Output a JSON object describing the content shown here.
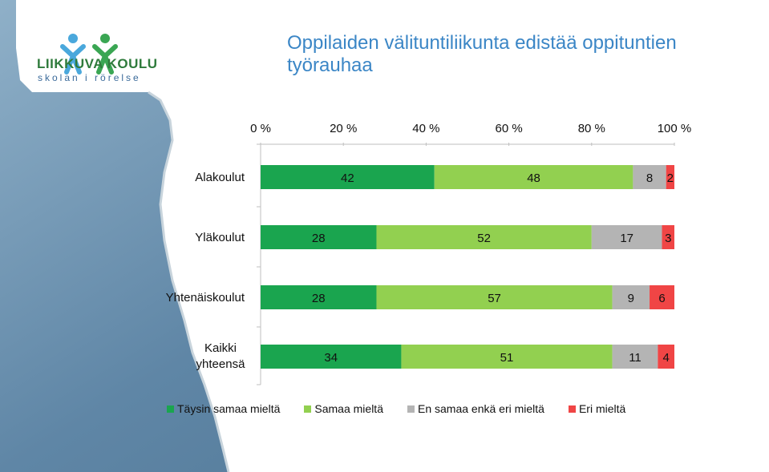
{
  "logo": {
    "name": "LIIKKUVA KOULU",
    "tagline": "skolan i rörelse"
  },
  "title": "Oppilaiden välituntiliikunta edistää oppituntien työrauhaa",
  "colors": {
    "tays": "#1aa54f",
    "samaa": "#92d050",
    "en": "#b4b4b4",
    "eri": "#f04545"
  },
  "chart_data": {
    "type": "bar",
    "orientation": "horizontal-stacked-percent",
    "title": "Oppilaiden välituntiliikunta edistää oppituntien työrauhaa",
    "xlabel": "",
    "ylabel": "",
    "xlim": [
      0,
      100
    ],
    "x_ticks": [
      "0 %",
      "20 %",
      "40 %",
      "60 %",
      "80 %",
      "100 %"
    ],
    "categories": [
      "Alakoulut",
      "Yläkoulut",
      "Yhtenäiskoulut",
      "Kaikki yhteensä"
    ],
    "series": [
      {
        "name": "Täysin samaa mieltä",
        "color": "#1aa54f",
        "values": [
          42,
          28,
          28,
          34
        ]
      },
      {
        "name": "Samaa mieltä",
        "color": "#92d050",
        "values": [
          48,
          52,
          57,
          51
        ]
      },
      {
        "name": "En samaa enkä eri mieltä",
        "color": "#b4b4b4",
        "values": [
          8,
          17,
          9,
          11
        ]
      },
      {
        "name": "Eri mieltä",
        "color": "#f04545",
        "values": [
          2,
          3,
          6,
          4
        ]
      }
    ],
    "legend_position": "bottom",
    "grid": false
  }
}
